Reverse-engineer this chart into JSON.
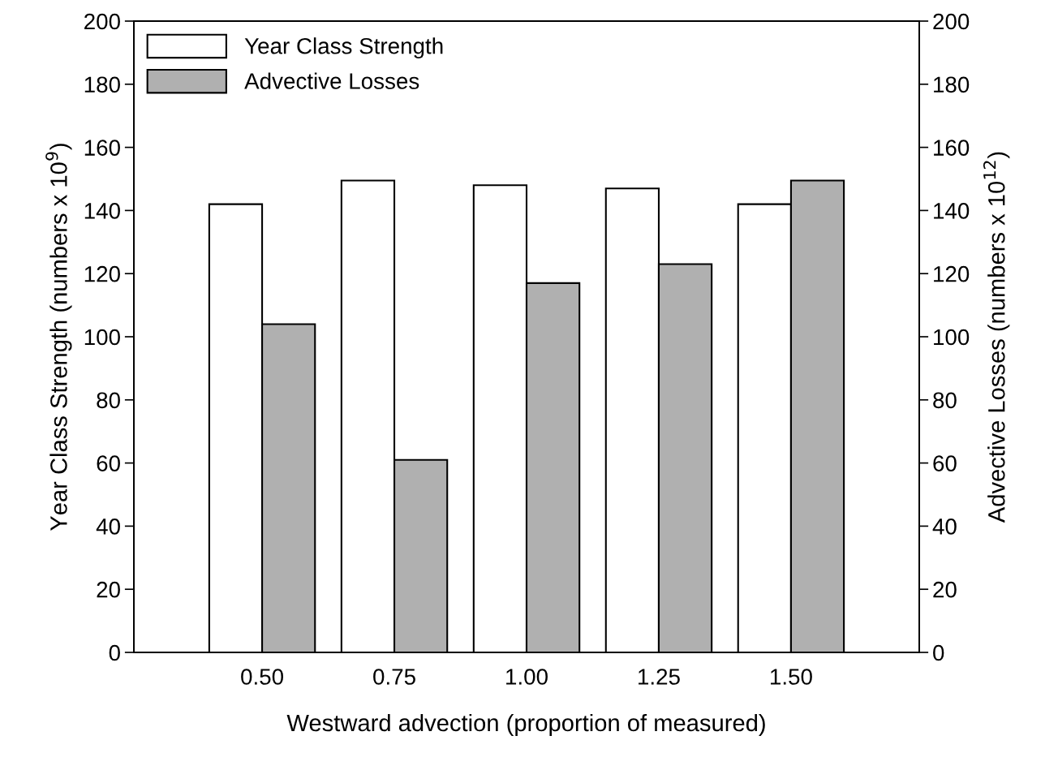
{
  "chart_data": {
    "type": "bar",
    "xlabel": "Westward advection (proportion of measured)",
    "ylabel": "Year Class Strength (numbers x 10$^{9}$)",
    "y2label": "Advective Losses (numbers x 10$^{12}$)",
    "categories": [
      "0.50",
      "0.75",
      "1.00",
      "1.25",
      "1.50"
    ],
    "series": [
      {
        "name": "Year Class Strength",
        "color": "#ffffff",
        "values": [
          142,
          149.5,
          148,
          147,
          142
        ]
      },
      {
        "name": "Advective Losses",
        "color": "#b0b0b0",
        "axis": "y2",
        "values": [
          104,
          61,
          117,
          123,
          149.5
        ]
      }
    ],
    "ylim": [
      0,
      200
    ],
    "yticks": [
      0,
      20,
      40,
      60,
      80,
      100,
      120,
      140,
      160,
      180,
      200
    ],
    "y2lim": [
      0,
      200
    ],
    "y2ticks": [
      0,
      20,
      40,
      60,
      80,
      100,
      120,
      140,
      160,
      180,
      200
    ],
    "grid": false,
    "legend": "top left"
  }
}
